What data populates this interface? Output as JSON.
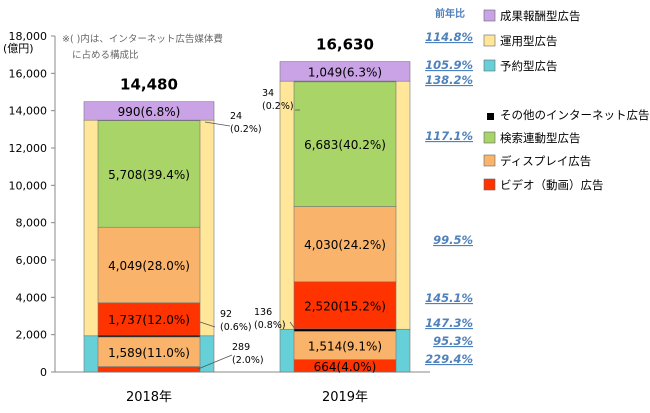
{
  "colors": {
    "seika": "#c9a3e6",
    "unyou": "#ffe699",
    "yoyaku": "#66d0d8",
    "other": "#000000",
    "kensaku": "#a9d468",
    "display": "#f9b36a",
    "video": "#ff3300",
    "yoy": "#4f81bd"
  },
  "chart_data": {
    "type": "bar",
    "stacked": true,
    "categories": [
      "2018年",
      "2019年"
    ],
    "ylim": [
      0,
      18000
    ],
    "ylabel": "(億円)",
    "yticks": [
      "0",
      "2,000",
      "4,000",
      "6,000",
      "8,000",
      "10,000",
      "12,000",
      "14,000",
      "16,000",
      "18,000"
    ],
    "note_lines": [
      "※( )内は、インターネット広告媒体費",
      "に占める構成比"
    ],
    "totals": [
      "14,480",
      "16,630"
    ],
    "outer_series": [
      {
        "name": "予約型広告",
        "color_key": "yoyaku",
        "values": [
          1940,
          2290
        ]
      },
      {
        "name": "運用型広告",
        "color_key": "unyou",
        "values": [
          11550,
          13290
        ]
      },
      {
        "name": "成果報酬型広告",
        "color_key": "seika",
        "values": [
          990,
          1049
        ],
        "labels": [
          "990(6.8%)",
          "1,049(6.3%)"
        ]
      }
    ],
    "inner_series": [
      {
        "name": "ビデオ（動画）広告",
        "color_key": "video",
        "values": [
          289,
          664
        ],
        "labels": [
          "",
          "664(4.0%)"
        ]
      },
      {
        "name": "ディスプレイ広告",
        "color_key": "display",
        "values": [
          1589,
          1514
        ],
        "labels": [
          "1,589(11.0%)",
          "1,514(9.1%)"
        ]
      },
      {
        "name": "その他のインターネット広告",
        "color_key": "other",
        "values": [
          92,
          136
        ],
        "labels": [
          "",
          ""
        ]
      },
      {
        "name": "ビデオ（動画）広告",
        "color_key": "video",
        "values": [
          1737,
          2520
        ],
        "labels": [
          "1,737(12.0%)",
          "2,520(15.2%)"
        ]
      },
      {
        "name": "ディスプレイ広告",
        "color_key": "display",
        "values": [
          4049,
          4030
        ],
        "labels": [
          "4,049(28.0%)",
          "4,030(24.2%)"
        ]
      },
      {
        "name": "検索連動型広告",
        "color_key": "kensaku",
        "values": [
          5708,
          6683
        ],
        "labels": [
          "5,708(39.4%)",
          "6,683(40.2%)"
        ]
      },
      {
        "name": "その他のインターネット広告",
        "color_key": "other",
        "values": [
          24,
          34
        ],
        "labels": [
          "",
          ""
        ]
      }
    ],
    "callouts": [
      {
        "lines": [
          "24",
          "(0.2%)"
        ]
      },
      {
        "lines": [
          "92",
          "(0.6%)"
        ]
      },
      {
        "lines": [
          "289",
          "(2.0%)"
        ]
      },
      {
        "lines": [
          "34",
          "(0.2%)"
        ]
      },
      {
        "lines": [
          "136",
          "(0.8%)"
        ]
      }
    ],
    "yoy_header": "前年比",
    "yoy": [
      "114.8%",
      "105.9%",
      "138.2%",
      "117.1%",
      "99.5%",
      "145.1%",
      "147.3%",
      "95.3%",
      "229.4%"
    ],
    "legend": [
      {
        "label": "成果報酬型広告",
        "color_key": "seika"
      },
      {
        "label": "運用型広告",
        "color_key": "unyou"
      },
      {
        "label": "予約型広告",
        "color_key": "yoyaku"
      },
      {
        "label": "その他のインターネット広告",
        "color_key": "other"
      },
      {
        "label": "検索連動型広告",
        "color_key": "kensaku"
      },
      {
        "label": "ディスプレイ広告",
        "color_key": "display"
      },
      {
        "label": "ビデオ（動画）広告",
        "color_key": "video"
      }
    ]
  }
}
